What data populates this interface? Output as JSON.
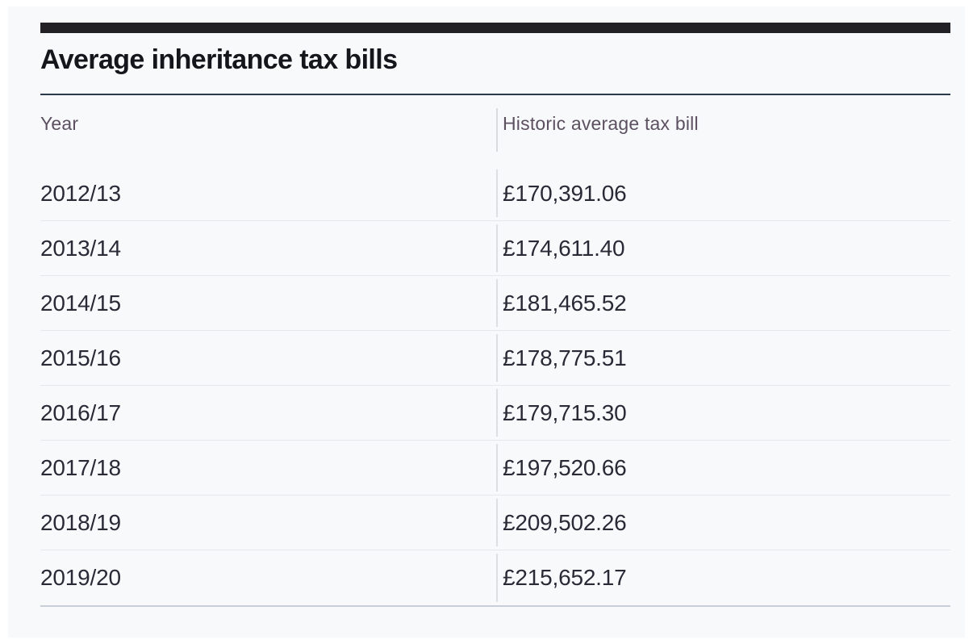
{
  "page": {
    "title": "Average inheritance tax bills"
  },
  "table": {
    "headers": {
      "year": "Year",
      "bill": "Historic average tax bill"
    },
    "rows": [
      {
        "year": "2012/13",
        "bill": "£170,391.06"
      },
      {
        "year": "2013/14",
        "bill": "£174,611.40"
      },
      {
        "year": "2014/15",
        "bill": "£181,465.52"
      },
      {
        "year": "2015/16",
        "bill": "£178,775.51"
      },
      {
        "year": "2016/17",
        "bill": "£179,715.30"
      },
      {
        "year": "2017/18",
        "bill": "£197,520.66"
      },
      {
        "year": "2018/19",
        "bill": "£209,502.26"
      },
      {
        "year": "2019/20",
        "bill": "£215,652.17"
      }
    ]
  },
  "chart_data": {
    "type": "table",
    "title": "Average inheritance tax bills",
    "columns": [
      "Year",
      "Historic average tax bill"
    ],
    "categories": [
      "2012/13",
      "2013/14",
      "2014/15",
      "2015/16",
      "2016/17",
      "2017/18",
      "2018/19",
      "2019/20"
    ],
    "values": [
      170391.06,
      174611.4,
      181465.52,
      178775.51,
      179715.3,
      197520.66,
      209502.26,
      215652.17
    ],
    "unit": "GBP",
    "layout": {
      "grid": "horizontal-row-rules",
      "legend": "none"
    }
  },
  "colors": {
    "accent_bar": "#232026",
    "title_text": "#15151c",
    "title_rule": "#2b3a4a",
    "header_text": "#5c5061",
    "body_text": "#2b2936",
    "row_rule": "#e4e8ec",
    "bottom_rule": "#c7ced5",
    "column_rule": "#d8dce0",
    "panel_bg": "#f7f9fb",
    "frame_bg": "#ffffff"
  }
}
